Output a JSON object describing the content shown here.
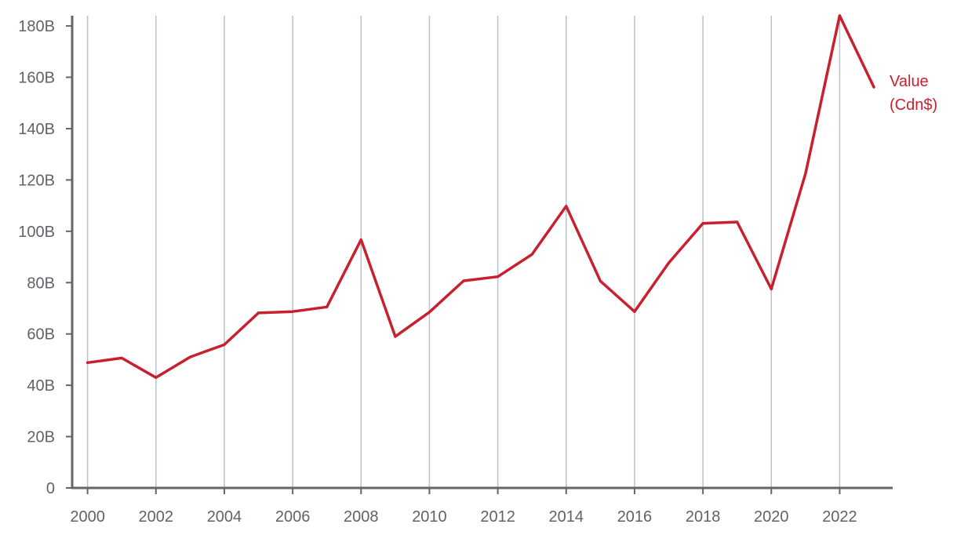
{
  "chart_data": {
    "type": "line",
    "title": "",
    "xlabel": "",
    "ylabel": "",
    "x": [
      2000,
      2001,
      2002,
      2003,
      2004,
      2005,
      2006,
      2007,
      2008,
      2009,
      2010,
      2011,
      2012,
      2013,
      2014,
      2015,
      2016,
      2017,
      2018,
      2019,
      2020,
      2021,
      2022,
      2023
    ],
    "series": [
      {
        "name": "Value (Cdn$)",
        "name_lines": [
          "Value",
          "(Cdn$)"
        ],
        "color": "#c8202f",
        "values": [
          48.8,
          50.6,
          43.0,
          51.0,
          55.8,
          68.2,
          68.7,
          70.5,
          96.7,
          59.0,
          68.5,
          80.7,
          82.3,
          91.0,
          109.8,
          80.6,
          68.7,
          87.7,
          103.1,
          103.6,
          77.5,
          122.5,
          184.0,
          156.2
        ]
      }
    ],
    "x_ticks": [
      2000,
      2002,
      2004,
      2006,
      2008,
      2010,
      2012,
      2014,
      2016,
      2018,
      2020,
      2022
    ],
    "x_tick_labels": [
      "2000",
      "2002",
      "2004",
      "2006",
      "2008",
      "2010",
      "2012",
      "2014",
      "2016",
      "2018",
      "2020",
      "2022"
    ],
    "y_ticks": [
      0,
      20,
      40,
      60,
      80,
      100,
      120,
      140,
      160,
      180
    ],
    "y_tick_labels": [
      "0",
      "20B",
      "40B",
      "60B",
      "80B",
      "100B",
      "120B",
      "140B",
      "160B",
      "180B"
    ],
    "xlim": [
      1999.55,
      2023.55
    ],
    "ylim": [
      0,
      184
    ],
    "grid": "vertical",
    "legend": "inline-right",
    "colors": {
      "grid": "#b9c2cb",
      "axis": "#666666",
      "tick_text": "#5f6368"
    }
  }
}
